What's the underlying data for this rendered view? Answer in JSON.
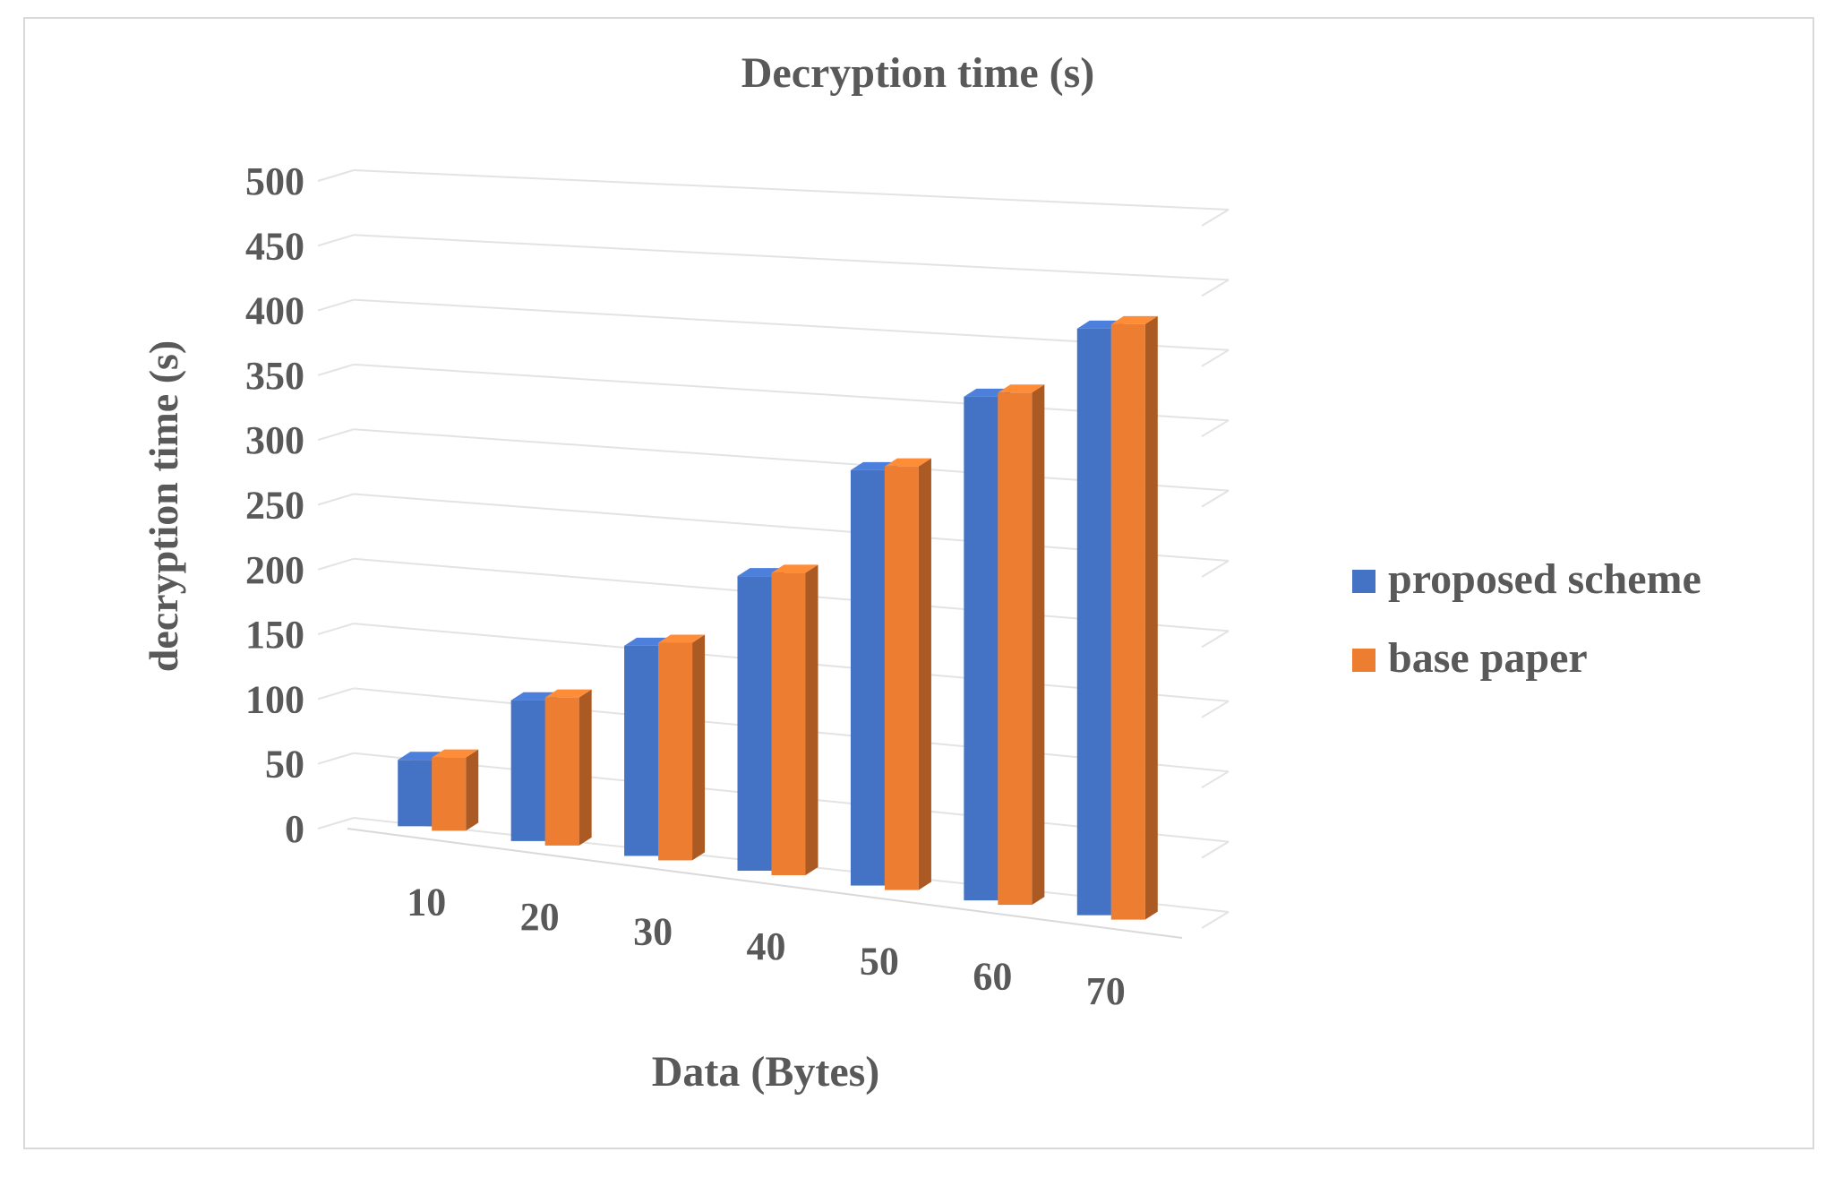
{
  "chart_data": {
    "type": "bar",
    "title": "Decryption time (s)",
    "xlabel": "Data (Bytes)",
    "ylabel": "decryption time (s)",
    "categories": [
      "10",
      "20",
      "30",
      "40",
      "50",
      "60",
      "70"
    ],
    "series": [
      {
        "name": "proposed scheme",
        "color": "#4472C4",
        "values": [
          50,
          105,
          155,
          215,
          300,
          360,
          415
        ]
      },
      {
        "name": "base paper",
        "color": "#ED7D31",
        "values": [
          55,
          110,
          160,
          220,
          305,
          365,
          420
        ]
      }
    ],
    "yticks": [
      "0",
      "50",
      "100",
      "150",
      "200",
      "250",
      "300",
      "350",
      "400",
      "450",
      "500"
    ],
    "ylim": [
      0,
      500
    ],
    "grid": true,
    "legend": "right",
    "style": "3d-clustered"
  }
}
